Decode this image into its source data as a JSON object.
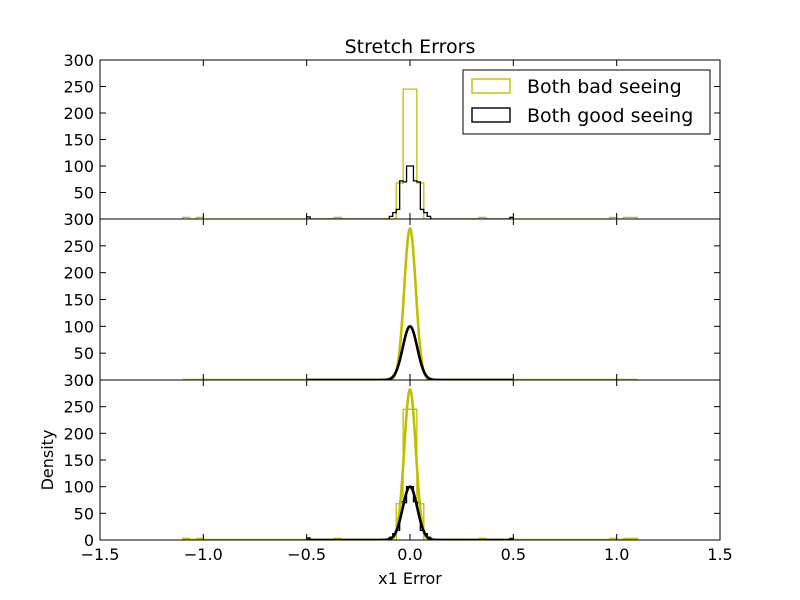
{
  "chart_data": {
    "type": "line",
    "title": "Stretch Errors",
    "xlabel": "x1 Error",
    "ylabel": "Density",
    "xlim": [
      -1.5,
      1.5
    ],
    "ylim": [
      0,
      300
    ],
    "x_ticks": [
      "−1.5",
      "−1.0",
      "−0.5",
      "0.0",
      "0.5",
      "1.0",
      "1.5"
    ],
    "y_ticks": [
      "0",
      "50",
      "100",
      "150",
      "200",
      "250",
      "300"
    ],
    "grid": false,
    "legend_position": "top-right",
    "colors": {
      "bad": "#bfbf00",
      "good": "#000000"
    },
    "panels": [
      {
        "kind": "histogram",
        "series": [
          {
            "name": "Both bad seeing",
            "color": "#bfbf00",
            "edges": [
              -1.1,
              -1.0667,
              -1.0333,
              -1.0,
              -0.9667,
              -0.9333,
              -0.9,
              -0.8667,
              -0.8333,
              -0.8,
              -0.7667,
              -0.7333,
              -0.7,
              -0.6667,
              -0.6333,
              -0.6,
              -0.5667,
              -0.5333,
              -0.5,
              -0.4667,
              -0.4333,
              -0.4,
              -0.3667,
              -0.3333,
              -0.3,
              -0.2667,
              -0.2333,
              -0.2,
              -0.1667,
              -0.1333,
              -0.1,
              -0.0667,
              -0.0333,
              0.0,
              0.0333,
              0.0667,
              0.1,
              0.1333,
              0.1667,
              0.2,
              0.2333,
              0.2667,
              0.3,
              0.3333,
              0.3667,
              0.4,
              0.4333,
              0.4667,
              0.5,
              0.5333,
              0.5667,
              0.6,
              0.6333,
              0.6667,
              0.7,
              0.7333,
              0.7667,
              0.8,
              0.8333,
              0.8667,
              0.9,
              0.9333,
              0.9667,
              1.0,
              1.0333,
              1.0667,
              1.1
            ],
            "values": [
              3,
              0,
              3,
              0,
              0,
              0,
              0,
              0,
              0,
              0,
              0,
              0,
              0,
              0,
              0,
              0,
              0,
              0,
              0,
              0,
              0,
              0,
              3,
              0,
              0,
              0,
              0,
              0,
              0,
              0,
              0,
              68,
              245,
              245,
              68,
              0,
              0,
              0,
              0,
              0,
              0,
              0,
              0,
              3,
              0,
              0,
              0,
              0,
              0,
              0,
              0,
              0,
              0,
              0,
              0,
              0,
              0,
              0,
              0,
              0,
              0,
              0,
              3,
              0,
              3,
              3
            ]
          },
          {
            "name": "Both good seeing",
            "color": "#000000",
            "edges": [
              -0.5,
              -0.4833,
              -0.4667,
              -0.45,
              -0.4333,
              -0.4167,
              -0.4,
              -0.3833,
              -0.3667,
              -0.35,
              -0.3333,
              -0.3167,
              -0.3,
              -0.2833,
              -0.2667,
              -0.25,
              -0.2333,
              -0.2167,
              -0.2,
              -0.1833,
              -0.1667,
              -0.15,
              -0.1333,
              -0.1167,
              -0.1,
              -0.0833,
              -0.0667,
              -0.05,
              -0.0333,
              -0.0167,
              0.0,
              0.0167,
              0.0333,
              0.05,
              0.0667,
              0.0833,
              0.1,
              0.1167,
              0.1333,
              0.15,
              0.1667,
              0.1833,
              0.2,
              0.2167,
              0.2333,
              0.25,
              0.2667,
              0.2833,
              0.3,
              0.3167,
              0.3333,
              0.35,
              0.3667,
              0.3833,
              0.4,
              0.4167,
              0.4333,
              0.45,
              0.4667,
              0.4833,
              0.5
            ],
            "values": [
              4,
              0,
              0,
              0,
              0,
              0,
              0,
              0,
              0,
              0,
              0,
              0,
              0,
              0,
              0,
              0,
              0,
              0,
              0,
              0,
              0,
              0,
              0,
              0,
              5,
              12,
              18,
              72,
              70,
              100,
              100,
              72,
              70,
              18,
              12,
              5,
              0,
              0,
              0,
              0,
              0,
              0,
              0,
              0,
              0,
              0,
              0,
              0,
              0,
              0,
              0,
              0,
              0,
              0,
              0,
              0,
              0,
              0,
              0,
              3
            ]
          }
        ]
      },
      {
        "kind": "curve",
        "series": [
          {
            "name": "Both bad seeing",
            "color": "#bfbf00",
            "curve": "gaussian",
            "mean": 0.0,
            "sigma": 0.028,
            "peak": 282,
            "x_range": [
              -1.1,
              1.1
            ]
          },
          {
            "name": "Both good seeing",
            "color": "#000000",
            "curve": "gaussian",
            "mean": 0.0,
            "sigma": 0.035,
            "peak": 100,
            "x_range": [
              -0.5,
              0.5
            ]
          }
        ]
      },
      {
        "kind": "histogram+curve",
        "series": [
          {
            "name": "Both bad seeing",
            "color": "#bfbf00",
            "ref_hist": 0,
            "ref_curve": 0
          },
          {
            "name": "Both good seeing",
            "color": "#000000",
            "ref_hist": 1,
            "ref_curve": 1
          }
        ]
      }
    ],
    "legend": [
      {
        "label": "Both bad seeing",
        "color": "#bfbf00"
      },
      {
        "label": "Both good seeing",
        "color": "#000000"
      }
    ]
  }
}
